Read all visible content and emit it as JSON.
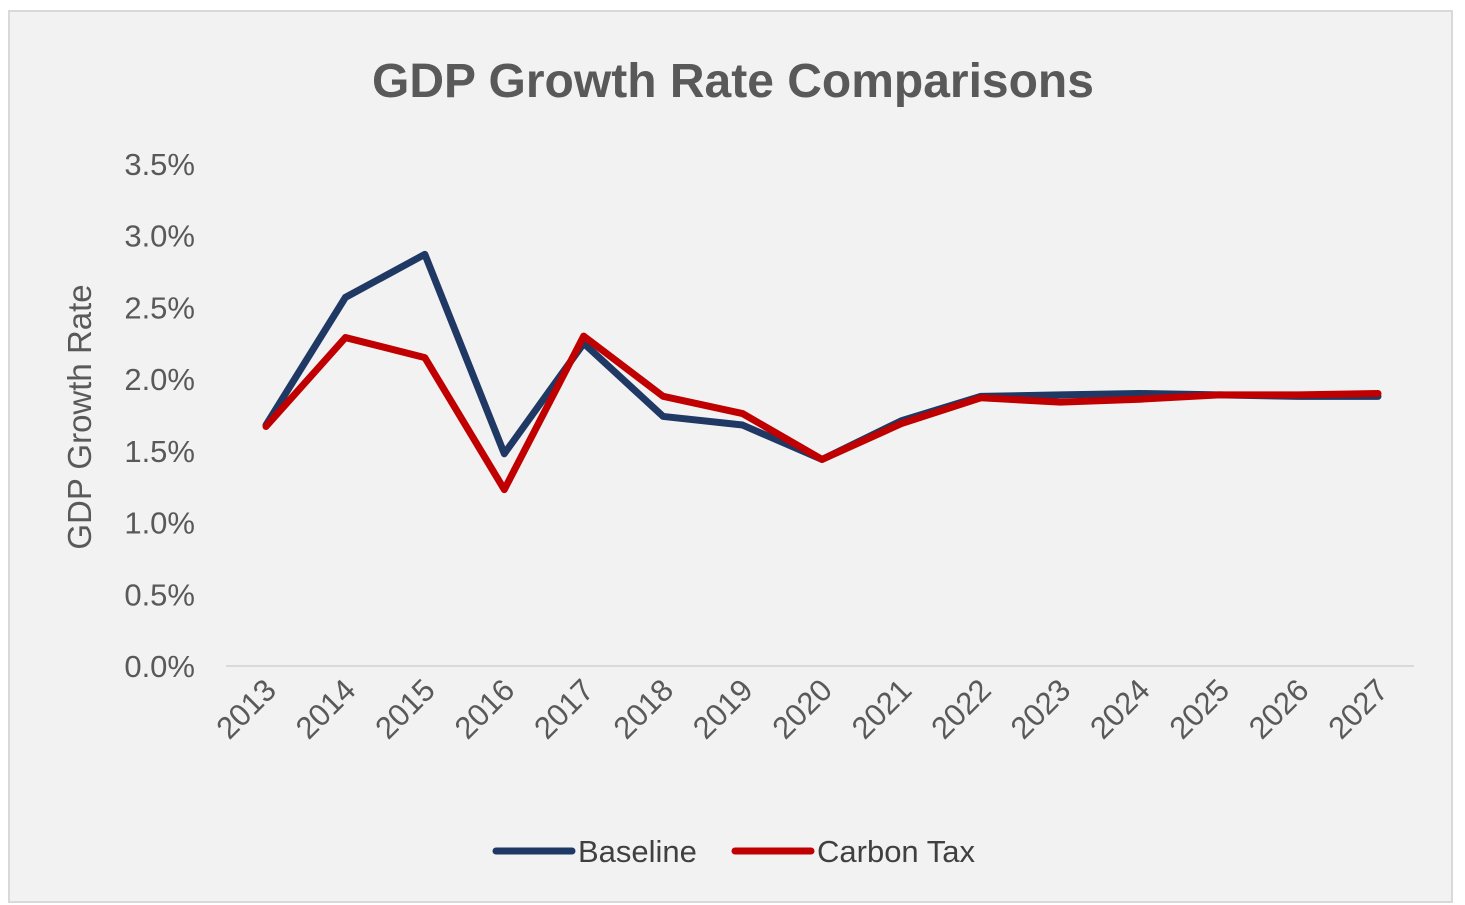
{
  "chart_data": {
    "type": "line",
    "title": "GDP Growth Rate Comparisons",
    "xlabel": "",
    "ylabel": "GDP Growth Rate",
    "ylim": [
      0,
      3.5
    ],
    "y_ticks": [
      "0.0%",
      "0.5%",
      "1.0%",
      "1.5%",
      "2.0%",
      "2.5%",
      "3.0%",
      "3.5%"
    ],
    "categories": [
      "2013",
      "2014",
      "2015",
      "2016",
      "2017",
      "2018",
      "2019",
      "2020",
      "2021",
      "2022",
      "2023",
      "2024",
      "2025",
      "2026",
      "2027"
    ],
    "grid": false,
    "legend_position": "bottom",
    "series": [
      {
        "name": "Baseline",
        "color": "#203864",
        "values": [
          1.68,
          2.57,
          2.87,
          1.48,
          2.25,
          1.74,
          1.68,
          1.44,
          1.71,
          1.88,
          1.89,
          1.9,
          1.89,
          1.88,
          1.88
        ]
      },
      {
        "name": "Carbon Tax",
        "color": "#c00000",
        "values": [
          1.67,
          2.29,
          2.15,
          1.23,
          2.3,
          1.88,
          1.76,
          1.44,
          1.69,
          1.87,
          1.84,
          1.86,
          1.89,
          1.89,
          1.9
        ]
      }
    ]
  }
}
